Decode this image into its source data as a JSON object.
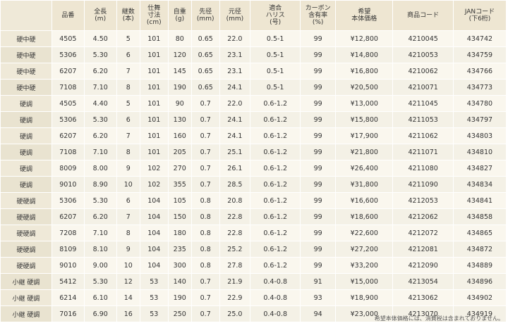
{
  "header": [
    "",
    "品番",
    "全長\n(m)",
    "継数\n(本)",
    "仕舞\n寸法\n(cm)",
    "自重\n(g)",
    "先径\n(mm)",
    "元径\n(mm)",
    "適合\nハリス\n(号)",
    "カーボン\n含有率\n(%)",
    "希望\n本体価格",
    "商品コード",
    "JANコード\n(下6桁)"
  ],
  "rows": [
    [
      "硬中硬",
      "4505",
      "4.50",
      "5",
      "101",
      "80",
      "0.65",
      "22.0",
      "0.5-1",
      "99",
      "¥12,800",
      "4210045",
      "434742"
    ],
    [
      "硬中硬",
      "5306",
      "5.30",
      "6",
      "101",
      "120",
      "0.65",
      "23.1",
      "0.5-1",
      "99",
      "¥14,800",
      "4210053",
      "434759"
    ],
    [
      "硬中硬",
      "6207",
      "6.20",
      "7",
      "101",
      "145",
      "0.65",
      "23.1",
      "0.5-1",
      "99",
      "¥16,800",
      "4210062",
      "434766"
    ],
    [
      "硬中硬",
      "7108",
      "7.10",
      "8",
      "101",
      "190",
      "0.65",
      "24.1",
      "0.5-1",
      "99",
      "¥20,500",
      "4210071",
      "434773"
    ],
    [
      "硬調",
      "4505",
      "4.40",
      "5",
      "101",
      "90",
      "0.7",
      "22.0",
      "0.6-1.2",
      "99",
      "¥13,000",
      "4211045",
      "434780"
    ],
    [
      "硬調",
      "5306",
      "5.30",
      "6",
      "101",
      "130",
      "0.7",
      "24.1",
      "0.6-1.2",
      "99",
      "¥15,800",
      "4211053",
      "434797"
    ],
    [
      "硬調",
      "6207",
      "6.20",
      "7",
      "101",
      "160",
      "0.7",
      "24.1",
      "0.6-1.2",
      "99",
      "¥17,900",
      "4211062",
      "434803"
    ],
    [
      "硬調",
      "7108",
      "7.10",
      "8",
      "101",
      "205",
      "0.7",
      "25.1",
      "0.6-1.2",
      "99",
      "¥21,800",
      "4211071",
      "434810"
    ],
    [
      "硬調",
      "8009",
      "8.00",
      "9",
      "102",
      "270",
      "0.7",
      "26.1",
      "0.6-1.2",
      "99",
      "¥26,400",
      "4211080",
      "434827"
    ],
    [
      "硬調",
      "9010",
      "8.90",
      "10",
      "102",
      "355",
      "0.7",
      "28.5",
      "0.6-1.2",
      "99",
      "¥31,800",
      "4211090",
      "434834"
    ],
    [
      "硬硬調",
      "5306",
      "5.30",
      "6",
      "104",
      "105",
      "0.8",
      "20.8",
      "0.6-1.2",
      "99",
      "¥16,600",
      "4212053",
      "434841"
    ],
    [
      "硬硬調",
      "6207",
      "6.20",
      "7",
      "104",
      "150",
      "0.8",
      "22.8",
      "0.6-1.2",
      "99",
      "¥18,600",
      "4212062",
      "434858"
    ],
    [
      "硬硬調",
      "7208",
      "7.10",
      "8",
      "104",
      "180",
      "0.8",
      "22.8",
      "0.6-1.2",
      "99",
      "¥22,600",
      "4212072",
      "434865"
    ],
    [
      "硬硬調",
      "8109",
      "8.10",
      "9",
      "104",
      "235",
      "0.8",
      "25.2",
      "0.6-1.2",
      "99",
      "¥27,200",
      "4212081",
      "434872"
    ],
    [
      "硬硬調",
      "9010",
      "9.00",
      "10",
      "104",
      "300",
      "0.8",
      "27.8",
      "0.6-1.2",
      "99",
      "¥33,200",
      "4212090",
      "434889"
    ],
    [
      "小継 硬調",
      "5412",
      "5.30",
      "12",
      "53",
      "140",
      "0.7",
      "21.9",
      "0.4-0.8",
      "91",
      "¥15,000",
      "4213054",
      "434896"
    ],
    [
      "小継 硬調",
      "6214",
      "6.10",
      "14",
      "53",
      "190",
      "0.7",
      "22.9",
      "0.4-0.8",
      "93",
      "¥18,900",
      "4213062",
      "434902"
    ],
    [
      "小継 硬調",
      "7016",
      "6.90",
      "16",
      "53",
      "250",
      "0.7",
      "25.0",
      "0.4-0.8",
      "94",
      "¥23,000",
      "4213070",
      "434919"
    ]
  ],
  "footnote": "希望本体価格には、消費税は含まれておりません。"
}
